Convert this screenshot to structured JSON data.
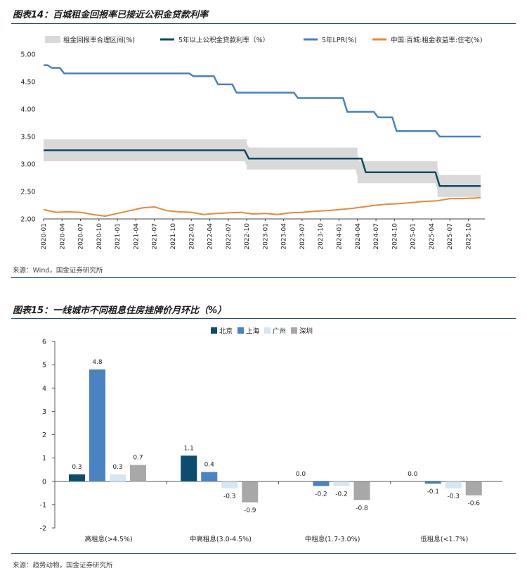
{
  "figure1": {
    "title": "图表14：百城租金回报率已接近公积金贷款利率",
    "source": "来源：Wind，国金证券研究所"
  },
  "figure2": {
    "title": "图表15：一线城市不同租息住房挂牌价月环比（%）",
    "source": "来源：趋势动物，国金证券研究所"
  },
  "colors": {
    "band": "#d9d9d9",
    "pf": "#0d4a66",
    "lpr": "#4a82bf",
    "rent": "#e8883a",
    "beijing": "#0b4d6e",
    "shanghai": "#4a82c2",
    "guangzhou": "#d6e6f3",
    "shenzhen": "#a8a8a8"
  },
  "chart_data": [
    {
      "type": "line",
      "title": "百城租金回报率已接近公积金贷款利率",
      "ylim": [
        2.0,
        5.0
      ],
      "yticks": [
        "2.00",
        "2.50",
        "3.00",
        "3.50",
        "4.00",
        "4.50",
        "5.00"
      ],
      "x_range": [
        "2020-01",
        "2025-12"
      ],
      "x_ticks": [
        "2020-01",
        "2020-04",
        "2020-07",
        "2020-10",
        "2021-01",
        "2021-04",
        "2021-07",
        "2021-10",
        "2022-01",
        "2022-04",
        "2022-07",
        "2022-10",
        "2023-01",
        "2023-04",
        "2023-07",
        "2023-10",
        "2024-01",
        "2024-04",
        "2024-07",
        "2024-10",
        "2025-01",
        "2025-04",
        "2025-07",
        "2025-10"
      ],
      "legend": [
        "租金回报率合理区间(%)",
        "5年以上公积金贷款利率（%）",
        "5年LPR(%)",
        "中国:百城:租金收益率:住宅(%)"
      ],
      "band": {
        "name": "租金回报率合理区间(%)",
        "points": [
          {
            "start": "2020-01",
            "low": 3.05,
            "high": 3.45
          },
          {
            "start": "2022-10",
            "low": 2.9,
            "high": 3.3
          },
          {
            "start": "2024-04",
            "low": 2.65,
            "high": 3.05
          },
          {
            "start": "2025-05",
            "low": 2.4,
            "high": 2.8
          }
        ],
        "end": "2025-12"
      },
      "pf_rate": {
        "name": "5年以上公积金贷款利率（%）",
        "steps": [
          {
            "start": "2020-01",
            "value": 3.25
          },
          {
            "start": "2022-10",
            "value": 3.1
          },
          {
            "start": "2024-05",
            "value": 2.85
          },
          {
            "start": "2025-05",
            "value": 2.6
          }
        ],
        "end": "2025-12"
      },
      "lpr": {
        "name": "5年LPR(%)",
        "steps": [
          {
            "start": "2020-01",
            "value": 4.8
          },
          {
            "start": "2020-02",
            "value": 4.75
          },
          {
            "start": "2020-04",
            "value": 4.65
          },
          {
            "start": "2022-01",
            "value": 4.6
          },
          {
            "start": "2022-05",
            "value": 4.45
          },
          {
            "start": "2022-08",
            "value": 4.3
          },
          {
            "start": "2023-06",
            "value": 4.2
          },
          {
            "start": "2024-02",
            "value": 3.95
          },
          {
            "start": "2024-07",
            "value": 3.85
          },
          {
            "start": "2024-10",
            "value": 3.6
          },
          {
            "start": "2025-05",
            "value": 3.5
          }
        ],
        "end": "2025-12"
      },
      "rent_yield": {
        "name": "中国:百城:租金收益率:住宅(%)",
        "x": [
          "2020-01",
          "2020-03",
          "2020-05",
          "2020-07",
          "2020-09",
          "2020-11",
          "2021-01",
          "2021-03",
          "2021-05",
          "2021-07",
          "2021-09",
          "2021-11",
          "2022-01",
          "2022-03",
          "2022-05",
          "2022-07",
          "2022-09",
          "2022-11",
          "2023-01",
          "2023-03",
          "2023-05",
          "2023-07",
          "2023-09",
          "2023-11",
          "2024-01",
          "2024-03",
          "2024-05",
          "2024-07",
          "2024-09",
          "2024-11",
          "2025-01",
          "2025-03",
          "2025-05",
          "2025-07",
          "2025-09",
          "2025-11",
          "2025-12"
        ],
        "values": [
          2.17,
          2.12,
          2.13,
          2.12,
          2.08,
          2.05,
          2.1,
          2.15,
          2.2,
          2.22,
          2.15,
          2.13,
          2.12,
          2.08,
          2.1,
          2.11,
          2.12,
          2.09,
          2.1,
          2.08,
          2.11,
          2.12,
          2.14,
          2.15,
          2.17,
          2.19,
          2.22,
          2.25,
          2.27,
          2.28,
          2.3,
          2.32,
          2.33,
          2.37,
          2.37,
          2.38,
          2.39
        ]
      }
    },
    {
      "type": "bar",
      "title": "一线城市不同租息住房挂牌价月环比（%）",
      "categories": [
        "高租息(>4.5%)",
        "中高租息(3.0-4.5%)",
        "中租息(1.7-3.0%)",
        "低租息(<1.7%)"
      ],
      "series": [
        {
          "name": "北京",
          "values": [
            0.3,
            1.1,
            0.0,
            0.0
          ]
        },
        {
          "name": "上海",
          "values": [
            4.8,
            0.4,
            -0.2,
            -0.1
          ]
        },
        {
          "name": "广州",
          "values": [
            0.3,
            -0.3,
            -0.2,
            -0.3
          ]
        },
        {
          "name": "深圳",
          "values": [
            0.7,
            -0.9,
            -0.8,
            -0.6
          ]
        }
      ],
      "labels": [
        [
          "0.3",
          "4.8",
          "0.3",
          "0.7"
        ],
        [
          "1.1",
          "0.4",
          "-0.3",
          "-0.9"
        ],
        [
          "0.0",
          "-0.2",
          "-0.2",
          "-0.8"
        ],
        [
          "0.0",
          "-0.1",
          "-0.3",
          "-0.6"
        ]
      ],
      "ylim": [
        -2,
        6
      ],
      "yticks": [
        "-2",
        "-1",
        "0",
        "1",
        "2",
        "3",
        "4",
        "5",
        "6"
      ]
    }
  ]
}
